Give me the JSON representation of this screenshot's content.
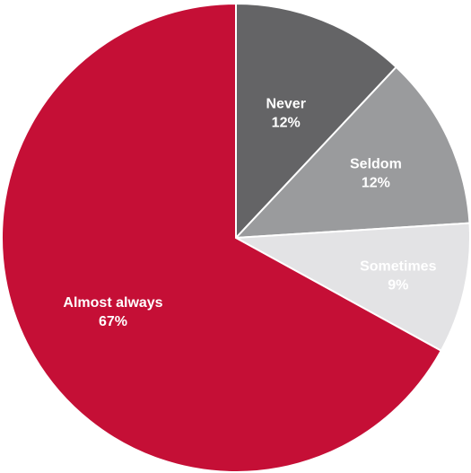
{
  "chart_data": {
    "type": "pie",
    "slices": [
      {
        "label": "Never",
        "value": 12,
        "value_text": "12%",
        "color": "#646466",
        "label_color": "#ffffff"
      },
      {
        "label": "Seldom",
        "value": 12,
        "value_text": "12%",
        "color": "#9a9b9d",
        "label_color": "#ffffff"
      },
      {
        "label": "Sometimes",
        "value": 9,
        "value_text": "9%",
        "color": "#e3e3e5",
        "label_color": "#ffffff"
      },
      {
        "label": "Almost always",
        "value": 67,
        "value_text": "67%",
        "color": "#c50f36",
        "label_color": "#ffffff"
      }
    ],
    "start_angle_deg": 0,
    "direction": "clockwise"
  }
}
